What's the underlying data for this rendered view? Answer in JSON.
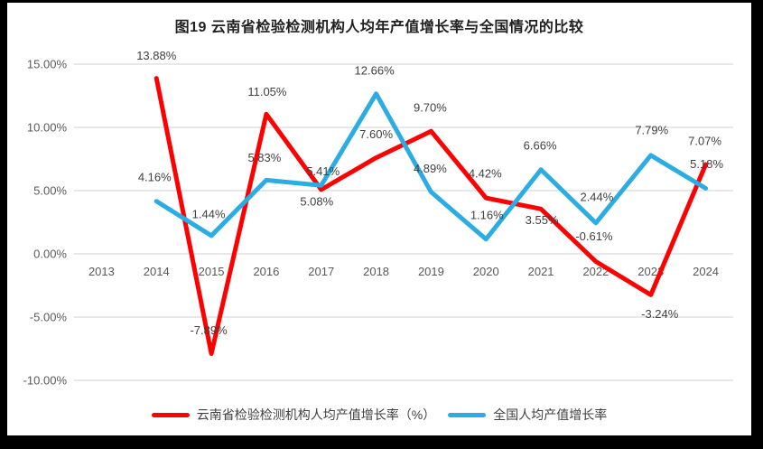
{
  "chart_data": {
    "type": "line",
    "title": "图19  云南省检验检测机构人均年产值增长率与全国情况的比较",
    "xlabel": "",
    "ylabel": "",
    "categories": [
      "2013",
      "2014",
      "2015",
      "2016",
      "2017",
      "2018",
      "2019",
      "2020",
      "2021",
      "2022",
      "2023",
      "2024"
    ],
    "y_ticks": [
      "15.00%",
      "10.00%",
      "5.00%",
      "0.00%",
      "-5.00%",
      "-10.00%"
    ],
    "y_tick_values": [
      15,
      10,
      5,
      0,
      -5,
      -10
    ],
    "ylim": [
      -10,
      15
    ],
    "grid": true,
    "grid_color": "#d9d9d9",
    "axis_text_color": "#595959",
    "data_label_color": "#404040",
    "legend_position": "bottom",
    "series": [
      {
        "name": "云南省检验检测机构人均产值增长率（%）",
        "color": "#fe0000",
        "values": [
          null,
          13.88,
          -7.89,
          11.05,
          5.08,
          7.6,
          9.7,
          4.42,
          3.55,
          -0.61,
          -3.24,
          7.07
        ],
        "labels": [
          null,
          "13.88%",
          "-7.89%",
          "11.05%",
          "5.08%",
          "7.60%",
          "9.70%",
          "4.42%",
          "3.55%",
          "-0.61%",
          "-3.24%",
          "7.07%"
        ],
        "label_offsets": [
          null,
          [
            0,
            -25
          ],
          [
            -3,
            -26
          ],
          [
            1,
            -25
          ],
          [
            -5,
            13
          ],
          [
            0,
            -26
          ],
          [
            -1,
            -26
          ],
          [
            -1,
            -27
          ],
          [
            1,
            12
          ],
          [
            -2,
            -28
          ],
          [
            10,
            21
          ],
          [
            -1,
            -26
          ]
        ]
      },
      {
        "name": "全国人均产值增长率",
        "color": "#2bace2",
        "values": [
          null,
          4.16,
          1.44,
          5.83,
          5.41,
          12.66,
          4.89,
          1.16,
          6.66,
          2.44,
          7.79,
          5.18
        ],
        "labels": [
          null,
          "4.16%",
          "1.44%",
          "5.83%",
          "5.41%",
          "12.66%",
          "4.89%",
          "1.16%",
          "6.66%",
          "2.44%",
          "7.79%",
          "5.18%"
        ],
        "label_offsets": [
          null,
          [
            -2,
            -27
          ],
          [
            -3,
            -24
          ],
          [
            -2,
            -25
          ],
          [
            2,
            -16
          ],
          [
            -2,
            -26
          ],
          [
            -1,
            -26
          ],
          [
            1,
            -27
          ],
          [
            -1,
            -27
          ],
          [
            1,
            -29
          ],
          [
            1,
            -28
          ],
          [
            1,
            -27
          ]
        ]
      }
    ]
  }
}
